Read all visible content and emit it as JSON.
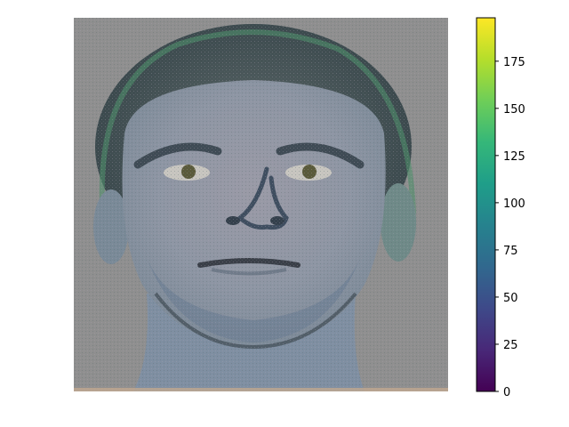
{
  "image": {
    "description_icon": "face-image",
    "background_color": "#8f8f8f",
    "tint": "false-color blue-green face photograph"
  },
  "colorbar": {
    "colormap": "viridis",
    "range": [
      0,
      198
    ],
    "ticks": [
      {
        "value": 0,
        "label": "0"
      },
      {
        "value": 25,
        "label": "25"
      },
      {
        "value": 50,
        "label": "50"
      },
      {
        "value": 75,
        "label": "75"
      },
      {
        "value": 100,
        "label": "100"
      },
      {
        "value": 125,
        "label": "125"
      },
      {
        "value": 150,
        "label": "150"
      },
      {
        "value": 175,
        "label": "175"
      }
    ],
    "stops": [
      "#440154",
      "#482878",
      "#3e4989",
      "#31688e",
      "#26828e",
      "#1f9e89",
      "#35b779",
      "#6ece58",
      "#b5de2b",
      "#fde725"
    ]
  }
}
